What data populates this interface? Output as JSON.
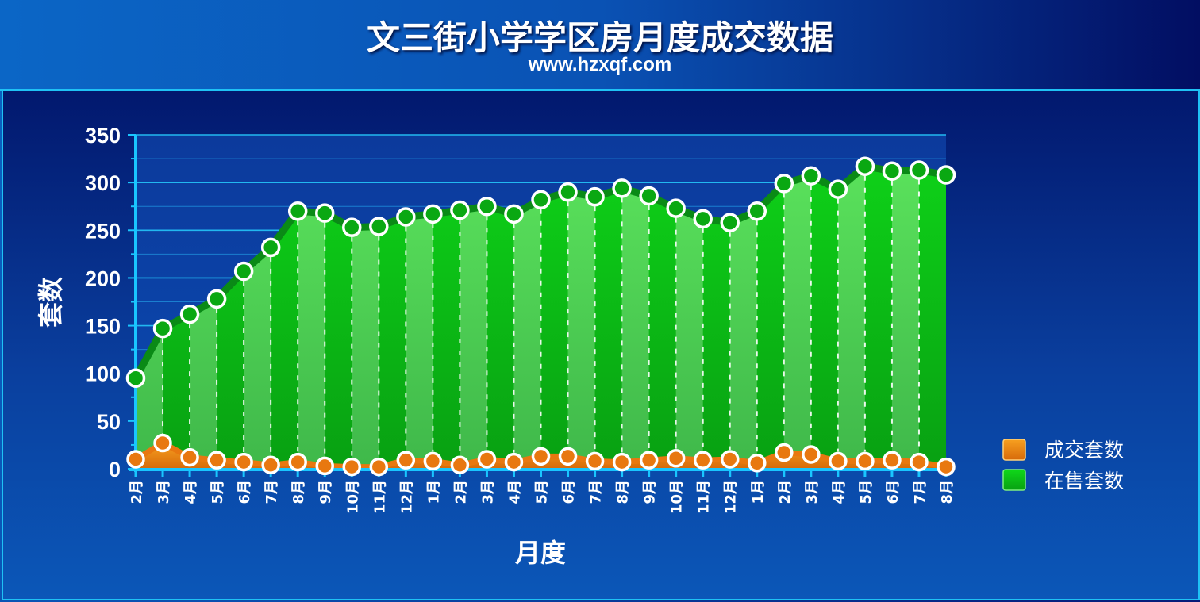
{
  "header": {
    "title": "文三街小学学区房月度成交数据",
    "subtitle": "www.hzxqf.com"
  },
  "chart_data": {
    "type": "area",
    "xlabel": "月度",
    "ylabel": "套数",
    "ylim": [
      0,
      350
    ],
    "yticks": [
      0,
      50,
      100,
      150,
      200,
      250,
      300,
      350
    ],
    "grid": true,
    "legend_position": "right",
    "categories": [
      "2月",
      "3月",
      "4月",
      "5月",
      "6月",
      "7月",
      "8月",
      "9月",
      "10月",
      "11月",
      "12月",
      "1月",
      "2月",
      "3月",
      "4月",
      "5月",
      "6月",
      "7月",
      "8月",
      "9月",
      "10月",
      "11月",
      "12月",
      "1月",
      "2月",
      "3月",
      "4月",
      "5月",
      "6月",
      "7月",
      "8月"
    ],
    "series": [
      {
        "name": "在售套数",
        "color": "#12c81a",
        "values": [
          95,
          147,
          162,
          178,
          207,
          232,
          270,
          268,
          253,
          254,
          264,
          267,
          271,
          275,
          267,
          282,
          290,
          285,
          294,
          286,
          273,
          262,
          258,
          270,
          299,
          307,
          293,
          317,
          312,
          313,
          308
        ]
      },
      {
        "name": "成交套数",
        "color": "#f28a14",
        "values": [
          10,
          27,
          12,
          9,
          7,
          4,
          7,
          3,
          2,
          2,
          9,
          8,
          4,
          10,
          7,
          13,
          13,
          8,
          7,
          9,
          11,
          9,
          10,
          6,
          17,
          15,
          8,
          8,
          9,
          7,
          2
        ]
      }
    ]
  }
}
